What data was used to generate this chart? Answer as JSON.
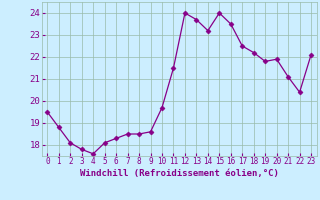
{
  "x": [
    0,
    1,
    2,
    3,
    4,
    5,
    6,
    7,
    8,
    9,
    10,
    11,
    12,
    13,
    14,
    15,
    16,
    17,
    18,
    19,
    20,
    21,
    22,
    23
  ],
  "y": [
    19.5,
    18.8,
    18.1,
    17.8,
    17.6,
    18.1,
    18.3,
    18.5,
    18.5,
    18.6,
    19.7,
    21.5,
    24.0,
    23.7,
    23.2,
    24.0,
    23.5,
    22.5,
    22.2,
    21.8,
    21.9,
    21.1,
    20.4,
    22.1
  ],
  "line_color": "#880088",
  "marker": "D",
  "marker_size": 2.5,
  "bg_color": "#cceeff",
  "grid_color": "#99bbaa",
  "xlabel": "Windchill (Refroidissement éolien,°C)",
  "xlabel_color": "#880088",
  "tick_color": "#880088",
  "ylim": [
    17.5,
    24.5
  ],
  "xlim": [
    -0.5,
    23.5
  ],
  "yticks": [
    18,
    19,
    20,
    21,
    22,
    23,
    24
  ],
  "xticks": [
    0,
    1,
    2,
    3,
    4,
    5,
    6,
    7,
    8,
    9,
    10,
    11,
    12,
    13,
    14,
    15,
    16,
    17,
    18,
    19,
    20,
    21,
    22,
    23
  ],
  "xlabel_fontsize": 6.5,
  "ytick_fontsize": 6.5,
  "xtick_fontsize": 5.5
}
